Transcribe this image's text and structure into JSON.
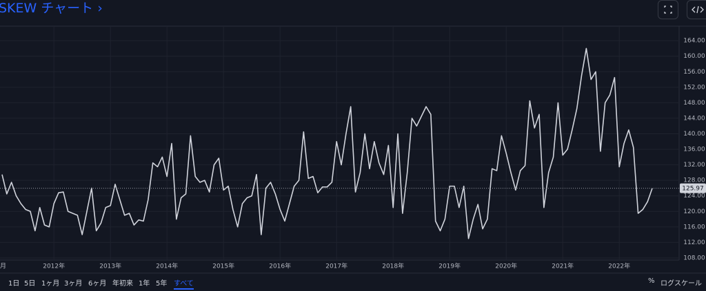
{
  "header": {
    "title": "SKEW チャート ›"
  },
  "toolbar": {
    "ranges": [
      "1日",
      "5日",
      "1ヶ月",
      "3ヶ月",
      "6ヶ月",
      "年初来",
      "1年",
      "5年",
      "すべて"
    ],
    "options": [
      "%",
      "ログスケール"
    ]
  },
  "chart_data": {
    "type": "line",
    "color": "#d1d4dc",
    "grid": true,
    "values": [
      129.5,
      124.5,
      127.5,
      124,
      122,
      120.5,
      120,
      115,
      121,
      116.5,
      116,
      122,
      124.8,
      125,
      120,
      119.5,
      119,
      114,
      120,
      126,
      115,
      117,
      121,
      121.5,
      127,
      123,
      119,
      119.5,
      116.5,
      117.8,
      117.5,
      123,
      132.5,
      131.5,
      134,
      129,
      137.5,
      118,
      123.5,
      124.5,
      139.5,
      129,
      127.5,
      128,
      125,
      132,
      133.7,
      125.5,
      126.5,
      120.5,
      116,
      122,
      123.5,
      124,
      129.5,
      114,
      126,
      127.5,
      124.5,
      120.5,
      117.5,
      122,
      126.5,
      128,
      140.5,
      128.5,
      129,
      124.8,
      126.3,
      126.3,
      127.5,
      138,
      132,
      140,
      147,
      125,
      130,
      140,
      131,
      138,
      132.5,
      129.5,
      137,
      121,
      140,
      119.5,
      130,
      144,
      142,
      144.5,
      147,
      145,
      117.5,
      115,
      118,
      126.5,
      126.5,
      121,
      126.5,
      113,
      118,
      121.8,
      115.5,
      118,
      131,
      130.5,
      139.5,
      135,
      130,
      125.5,
      130.5,
      131.8,
      148.5,
      141.5,
      145,
      121,
      130,
      134,
      148,
      134.5,
      136,
      141,
      146.5,
      155,
      162,
      154,
      156,
      135.5,
      148,
      150,
      154.5,
      131.5,
      137.5,
      141,
      136.5,
      119.5,
      120.5,
      122.5,
      125.97
    ],
    "xlim": [
      -0.44,
      143.7
    ],
    "xticks": [
      {
        "value": 0,
        "label": "月"
      },
      {
        "value": 11,
        "label": "2012年"
      },
      {
        "value": 23,
        "label": "2013年"
      },
      {
        "value": 35,
        "label": "2014年"
      },
      {
        "value": 47,
        "label": "2015年"
      },
      {
        "value": 59,
        "label": "2016年"
      },
      {
        "value": 71,
        "label": "2017年"
      },
      {
        "value": 83,
        "label": "2018年"
      },
      {
        "value": 95,
        "label": "2019年"
      },
      {
        "value": 107,
        "label": "2020年"
      },
      {
        "value": 119,
        "label": "2021年"
      },
      {
        "value": 131,
        "label": "2022年"
      }
    ],
    "ylim": [
      107.46,
      167.75
    ],
    "yticks": [
      {
        "value": 108,
        "label": "108.00"
      },
      {
        "value": 112,
        "label": "112.00"
      },
      {
        "value": 116,
        "label": "116.00"
      },
      {
        "value": 120,
        "label": "120.00"
      },
      {
        "value": 124,
        "label": "124.00"
      },
      {
        "value": 128,
        "label": "128.00"
      },
      {
        "value": 132,
        "label": "132.00"
      },
      {
        "value": 136,
        "label": "136.00"
      },
      {
        "value": 140,
        "label": "140.00"
      },
      {
        "value": 144,
        "label": "144.00"
      },
      {
        "value": 148,
        "label": "148.00"
      },
      {
        "value": 152,
        "label": "152.00"
      },
      {
        "value": 156,
        "label": "156.00"
      },
      {
        "value": 160,
        "label": "160.00"
      },
      {
        "value": 164,
        "label": "164.00"
      }
    ]
  }
}
